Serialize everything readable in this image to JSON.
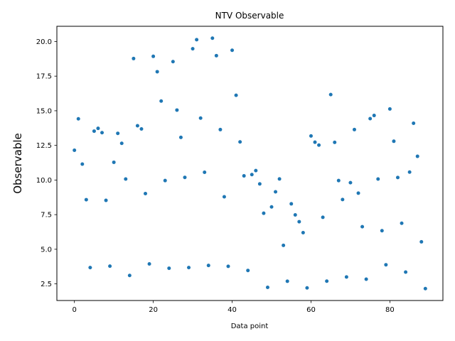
{
  "chart_data": {
    "type": "scatter",
    "title": "NTV Observable",
    "xlabel": "Data point",
    "ylabel": "Observable",
    "xlim": [
      -4.45,
      93.45
    ],
    "ylim": [
      1.3,
      21.1
    ],
    "xticks": [
      0,
      20,
      40,
      60,
      80
    ],
    "xtick_labels": [
      "0",
      "20",
      "40",
      "60",
      "80"
    ],
    "yticks": [
      2.5,
      5.0,
      7.5,
      10.0,
      12.5,
      15.0,
      17.5,
      20.0
    ],
    "ytick_labels": [
      "2.5",
      "5.0",
      "7.5",
      "10.0",
      "12.5",
      "15.0",
      "17.5",
      "20.0"
    ],
    "grid": false,
    "marker_color": "#1f77b4",
    "series": [
      {
        "x": [
          0,
          1,
          2,
          3,
          4,
          5,
          6,
          7,
          8,
          9,
          10,
          11,
          12,
          13,
          14,
          15,
          16,
          17,
          18,
          19,
          20,
          21,
          22,
          23,
          24,
          25,
          26,
          27,
          28,
          29,
          30,
          31,
          32,
          33,
          34,
          35,
          36,
          37,
          38,
          39,
          40,
          41,
          42,
          43,
          44,
          45,
          46,
          47,
          48,
          49,
          50,
          51,
          52,
          53,
          54,
          55,
          56,
          57,
          58,
          59,
          60,
          61,
          62,
          63,
          64,
          65,
          66,
          67,
          68,
          69,
          70,
          71,
          72,
          73,
          74,
          75,
          76,
          77,
          78,
          79,
          80,
          81,
          82,
          83,
          84,
          85,
          86,
          87,
          88,
          89
        ],
        "y": [
          12.15,
          14.42,
          11.15,
          8.58,
          3.68,
          13.53,
          13.73,
          13.42,
          8.53,
          3.78,
          11.28,
          13.37,
          12.65,
          10.07,
          3.11,
          18.77,
          13.92,
          13.69,
          9.02,
          3.94,
          18.93,
          17.82,
          15.7,
          9.96,
          3.63,
          18.55,
          15.05,
          13.08,
          10.19,
          3.68,
          19.48,
          20.13,
          14.47,
          10.56,
          3.83,
          20.24,
          18.98,
          13.64,
          8.79,
          3.77,
          19.37,
          16.12,
          12.75,
          10.3,
          3.47,
          10.39,
          10.68,
          9.72,
          7.6,
          2.25,
          8.06,
          9.15,
          10.08,
          5.28,
          2.69,
          8.28,
          7.48,
          6.99,
          6.2,
          2.21,
          13.18,
          12.73,
          12.52,
          7.31,
          2.7,
          16.17,
          12.72,
          9.96,
          8.59,
          3.0,
          9.81,
          13.64,
          9.05,
          6.63,
          2.84,
          14.43,
          14.66,
          10.07,
          6.34,
          3.88,
          15.13,
          12.8,
          10.18,
          6.88,
          3.35,
          10.57,
          14.1,
          11.71,
          5.54,
          2.16
        ]
      }
    ]
  }
}
